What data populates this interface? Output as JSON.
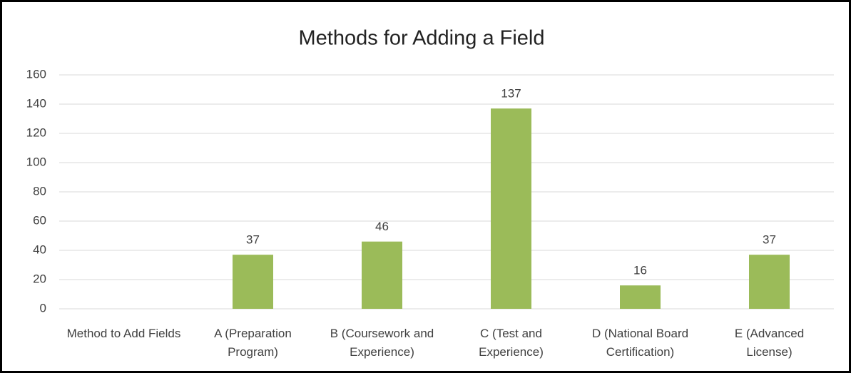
{
  "chart_data": {
    "type": "bar",
    "title": "Methods for Adding a Field",
    "categories": [
      "Method to Add Fields",
      "A (Preparation Program)",
      "B (Coursework and Experience)",
      "C (Test and Experience)",
      "D (National Board Certification)",
      "E (Advanced License)"
    ],
    "values": [
      null,
      37,
      46,
      137,
      16,
      37
    ],
    "color": "#9bbb59",
    "ylim": [
      0,
      160
    ],
    "yticks": [
      0,
      20,
      40,
      60,
      80,
      100,
      120,
      140,
      160
    ],
    "grid": true
  }
}
